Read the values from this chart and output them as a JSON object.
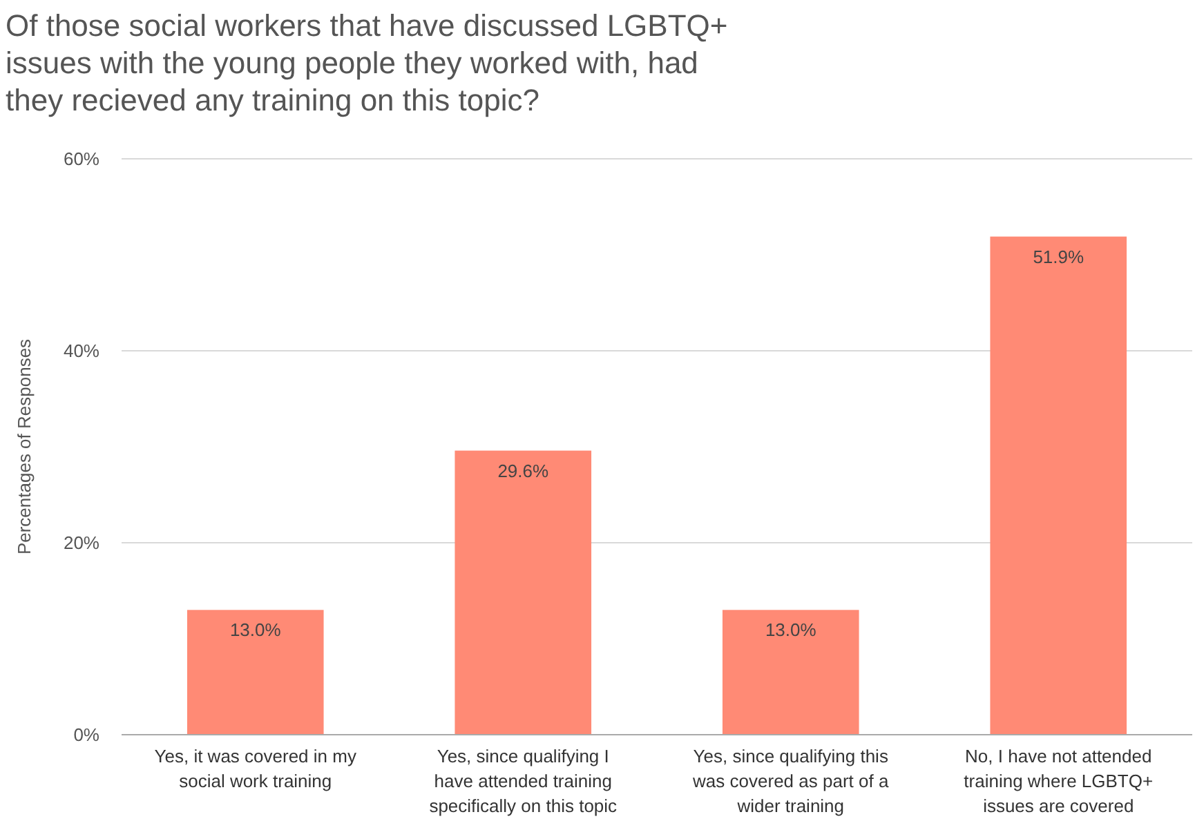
{
  "chart_data": {
    "type": "bar",
    "title": "Of those social workers that have discussed LGBTQ+ issues with the young people they worked with, had they recieved any training on this topic?",
    "ylabel": "Percentages of Responses",
    "categories": [
      "Yes, it was covered in my social work training",
      "Yes, since qualifying I have attended training specifically on this topic",
      "Yes, since qualifying this was covered as part of a wider training",
      "No, I have not attended training where LGBTQ+ issues are covered"
    ],
    "values": [
      13.0,
      29.6,
      13.0,
      51.9
    ],
    "value_labels": [
      "13.0%",
      "29.6%",
      "13.0%",
      "51.9%"
    ],
    "color": "#ff8a75",
    "ylim": [
      0,
      60
    ],
    "yticks": [
      {
        "value": 0,
        "label": "0%"
      },
      {
        "value": 20,
        "label": "20%"
      },
      {
        "value": 40,
        "label": "40%"
      },
      {
        "value": 60,
        "label": "60%"
      }
    ],
    "grid": "y"
  }
}
